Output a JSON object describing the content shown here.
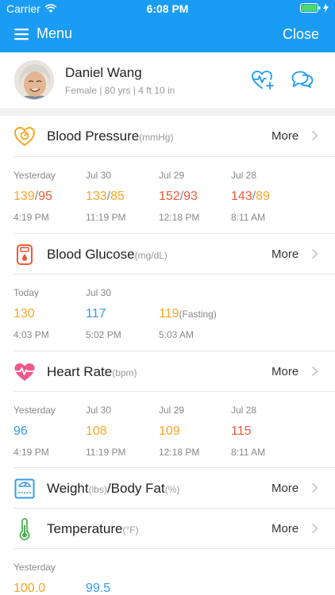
{
  "status_bar": {
    "carrier": "Carrier",
    "time": "6:08 PM"
  },
  "nav": {
    "menu_label": "Menu",
    "close_label": "Close"
  },
  "profile": {
    "name": "Daniel Wang",
    "meta": "Female | 80 yrs | 4 ft 10 in"
  },
  "colors": {
    "primary": "#1a9cf4",
    "orange": "#f7a623",
    "red": "#ee5b3a",
    "blue": "#2f9de8"
  },
  "blood_pressure": {
    "title": "Blood Pressure",
    "unit": "(mmHg)",
    "more": "More",
    "readings": [
      {
        "day": "Yesterday",
        "sys": "139",
        "dia": "95",
        "time": "4:19 PM"
      },
      {
        "day": "Jul 30",
        "sys": "133",
        "dia": "85",
        "time": "11:19 PM"
      },
      {
        "day": "Jul 29",
        "sys": "152",
        "dia": "93",
        "time": "12:18 PM"
      },
      {
        "day": "Jul 28",
        "sys": "143",
        "dia": "89",
        "time": "8:11 AM"
      }
    ]
  },
  "blood_glucose": {
    "title": "Blood Glucose",
    "unit": "(mg/dL)",
    "more": "More",
    "readings": [
      {
        "day": "Today",
        "value": "130",
        "suffix": "",
        "time": "4:03 PM"
      },
      {
        "day": "Jul 30",
        "value": "117",
        "suffix": "",
        "time": "5:02 PM"
      },
      {
        "day": "",
        "value": "119",
        "suffix": "(Fasting)",
        "time": "5:03 AM"
      }
    ]
  },
  "heart_rate": {
    "title": "Heart Rate",
    "unit": "(bpm)",
    "more": "More",
    "readings": [
      {
        "day": "Yesterday",
        "value": "96",
        "time": "4:19 PM"
      },
      {
        "day": "Jul 30",
        "value": "108",
        "time": "11:19 PM"
      },
      {
        "day": "Jul 29",
        "value": "109",
        "time": "12:18 PM"
      },
      {
        "day": "Jul 28",
        "value": "115",
        "time": "8:11 AM"
      }
    ]
  },
  "weight": {
    "title_a": "Weight",
    "unit_a": "(lbs)",
    "title_b": "/Body Fat",
    "unit_b": "(%)",
    "more": "More"
  },
  "temperature": {
    "title": "Temperature",
    "unit": "(°F)",
    "more": "More",
    "readings": [
      {
        "day": "Yesterday",
        "value": "100.0"
      },
      {
        "day": "",
        "value": "99.5"
      }
    ]
  }
}
